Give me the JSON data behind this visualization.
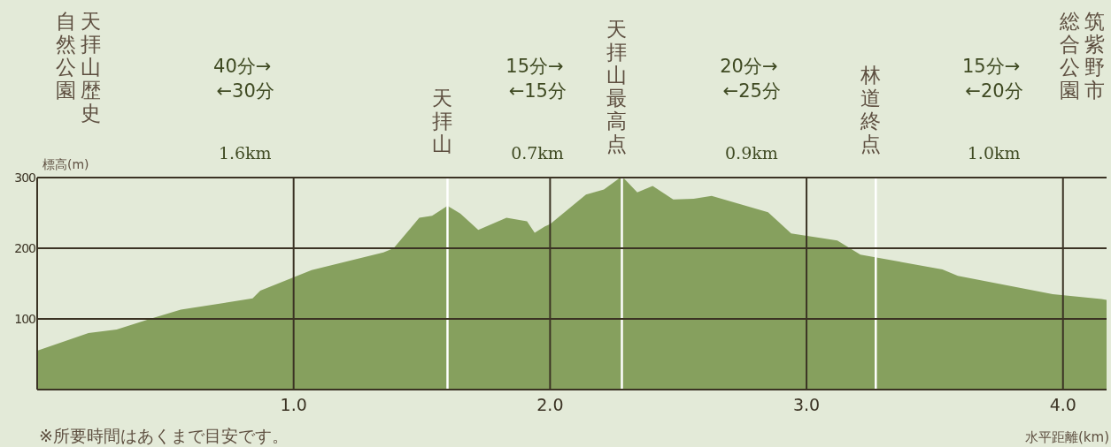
{
  "chart_data": {
    "type": "area",
    "xlabel": "水平距離(km)",
    "ylabel": "標高(m)",
    "x": [
      0,
      0.2,
      0.31,
      0.44,
      0.56,
      0.84,
      0.87,
      1.07,
      1.35,
      1.39,
      1.49,
      1.54,
      1.6,
      1.65,
      1.72,
      1.83,
      1.91,
      1.94,
      1.98,
      2.0,
      2.14,
      2.21,
      2.27,
      2.29,
      2.34,
      2.4,
      2.48,
      2.56,
      2.63,
      2.85,
      2.94,
      3.12,
      3.21,
      3.53,
      3.59,
      3.96,
      4.15,
      4.17
    ],
    "series": [
      {
        "color": "#86a05e",
        "values": [
          55,
          80,
          85,
          100,
          113,
          129,
          140,
          169,
          194,
          200,
          243,
          246,
          260,
          249,
          226,
          243,
          238,
          222,
          231,
          234,
          276,
          283,
          299,
          298,
          279,
          288,
          269,
          270,
          274,
          251,
          221,
          211,
          191,
          170,
          161,
          135,
          128,
          127
        ]
      }
    ],
    "xlim": [
      0,
      4.17
    ],
    "xticks": [
      {
        "value": 1,
        "label": "1.0"
      },
      {
        "value": 2,
        "label": "2.0"
      },
      {
        "value": 3,
        "label": "3.0"
      },
      {
        "value": 4,
        "label": "4.0"
      }
    ],
    "ylim": [
      0,
      300
    ],
    "yticks": [
      100,
      200,
      300
    ],
    "grid": true,
    "ref_lines": [
      {
        "axis": "x",
        "value": 1.6,
        "label": "天拝山",
        "color": "#ffffff"
      },
      {
        "axis": "x",
        "value": 2.28,
        "label": "天拝山最高点",
        "color": "#ffffff"
      },
      {
        "axis": "x",
        "value": 3.27,
        "label": "林道終点",
        "color": "#ffffff"
      }
    ],
    "annotations": [
      "天拝山歴史",
      "自然公園",
      "筑紫野市",
      "総合公園",
      "40分→ ←30分 1.6km",
      "15分→ ←15分 0.7km",
      "20分→ ←25分 0.9km",
      "15分→ ←20分 1.0km",
      "※所要時間はあくまで目安です。"
    ]
  }
}
